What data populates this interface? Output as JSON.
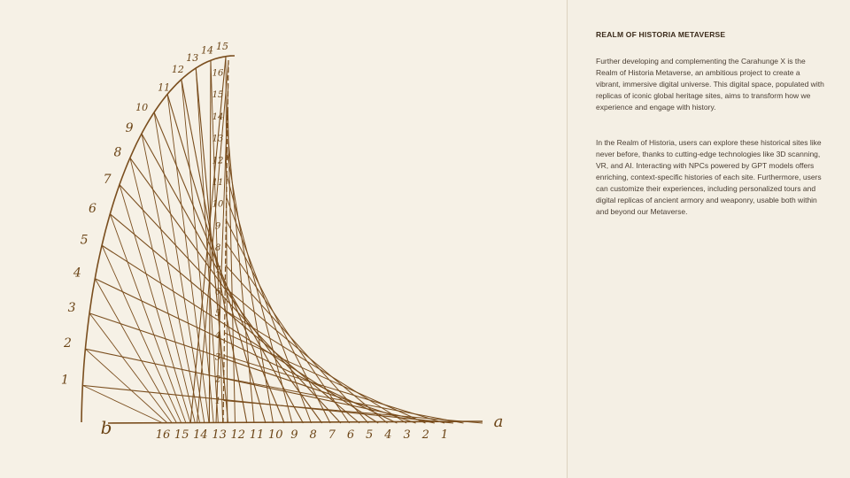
{
  "article": {
    "title": "REALM OF HISTORIA METAVERSE",
    "paragraphs": [
      "Further developing and complementing the Carahunge X is the Realm of Historia Metaverse, an ambitious project to create a vibrant, immersive digital universe. This digital space, populated with replicas of iconic global heritage sites, aims to transform how we experience and engage with history.",
      "In the Realm of Historia, users can explore these historical sites like never before, thanks to cutting-edge technologies like 3D scanning, VR, and AI. Interacting with NPCs powered by GPT models offers enriching, context-specific histories of each site. Furthermore, users can customize their experiences, including personalized tours and digital replicas of ancient armory and weaponry, usable both within and beyond our Metaverse."
    ]
  },
  "diagram": {
    "corner_labels": {
      "origin": "b",
      "right": "a"
    },
    "arc_labels": [
      "1",
      "2",
      "3",
      "4",
      "5",
      "6",
      "7",
      "8",
      "9",
      "10",
      "11",
      "12",
      "13",
      "14",
      "15"
    ],
    "baseline_labels": [
      "16",
      "15",
      "14",
      "13",
      "12",
      "11",
      "10",
      "9",
      "8",
      "7",
      "6",
      "5",
      "4",
      "3",
      "2",
      "1"
    ],
    "vertical_labels": [
      "1",
      "2",
      "3",
      "4",
      "5",
      "6",
      "7",
      "8",
      "9",
      "10",
      "11",
      "12",
      "13",
      "14",
      "15",
      "16"
    ]
  }
}
